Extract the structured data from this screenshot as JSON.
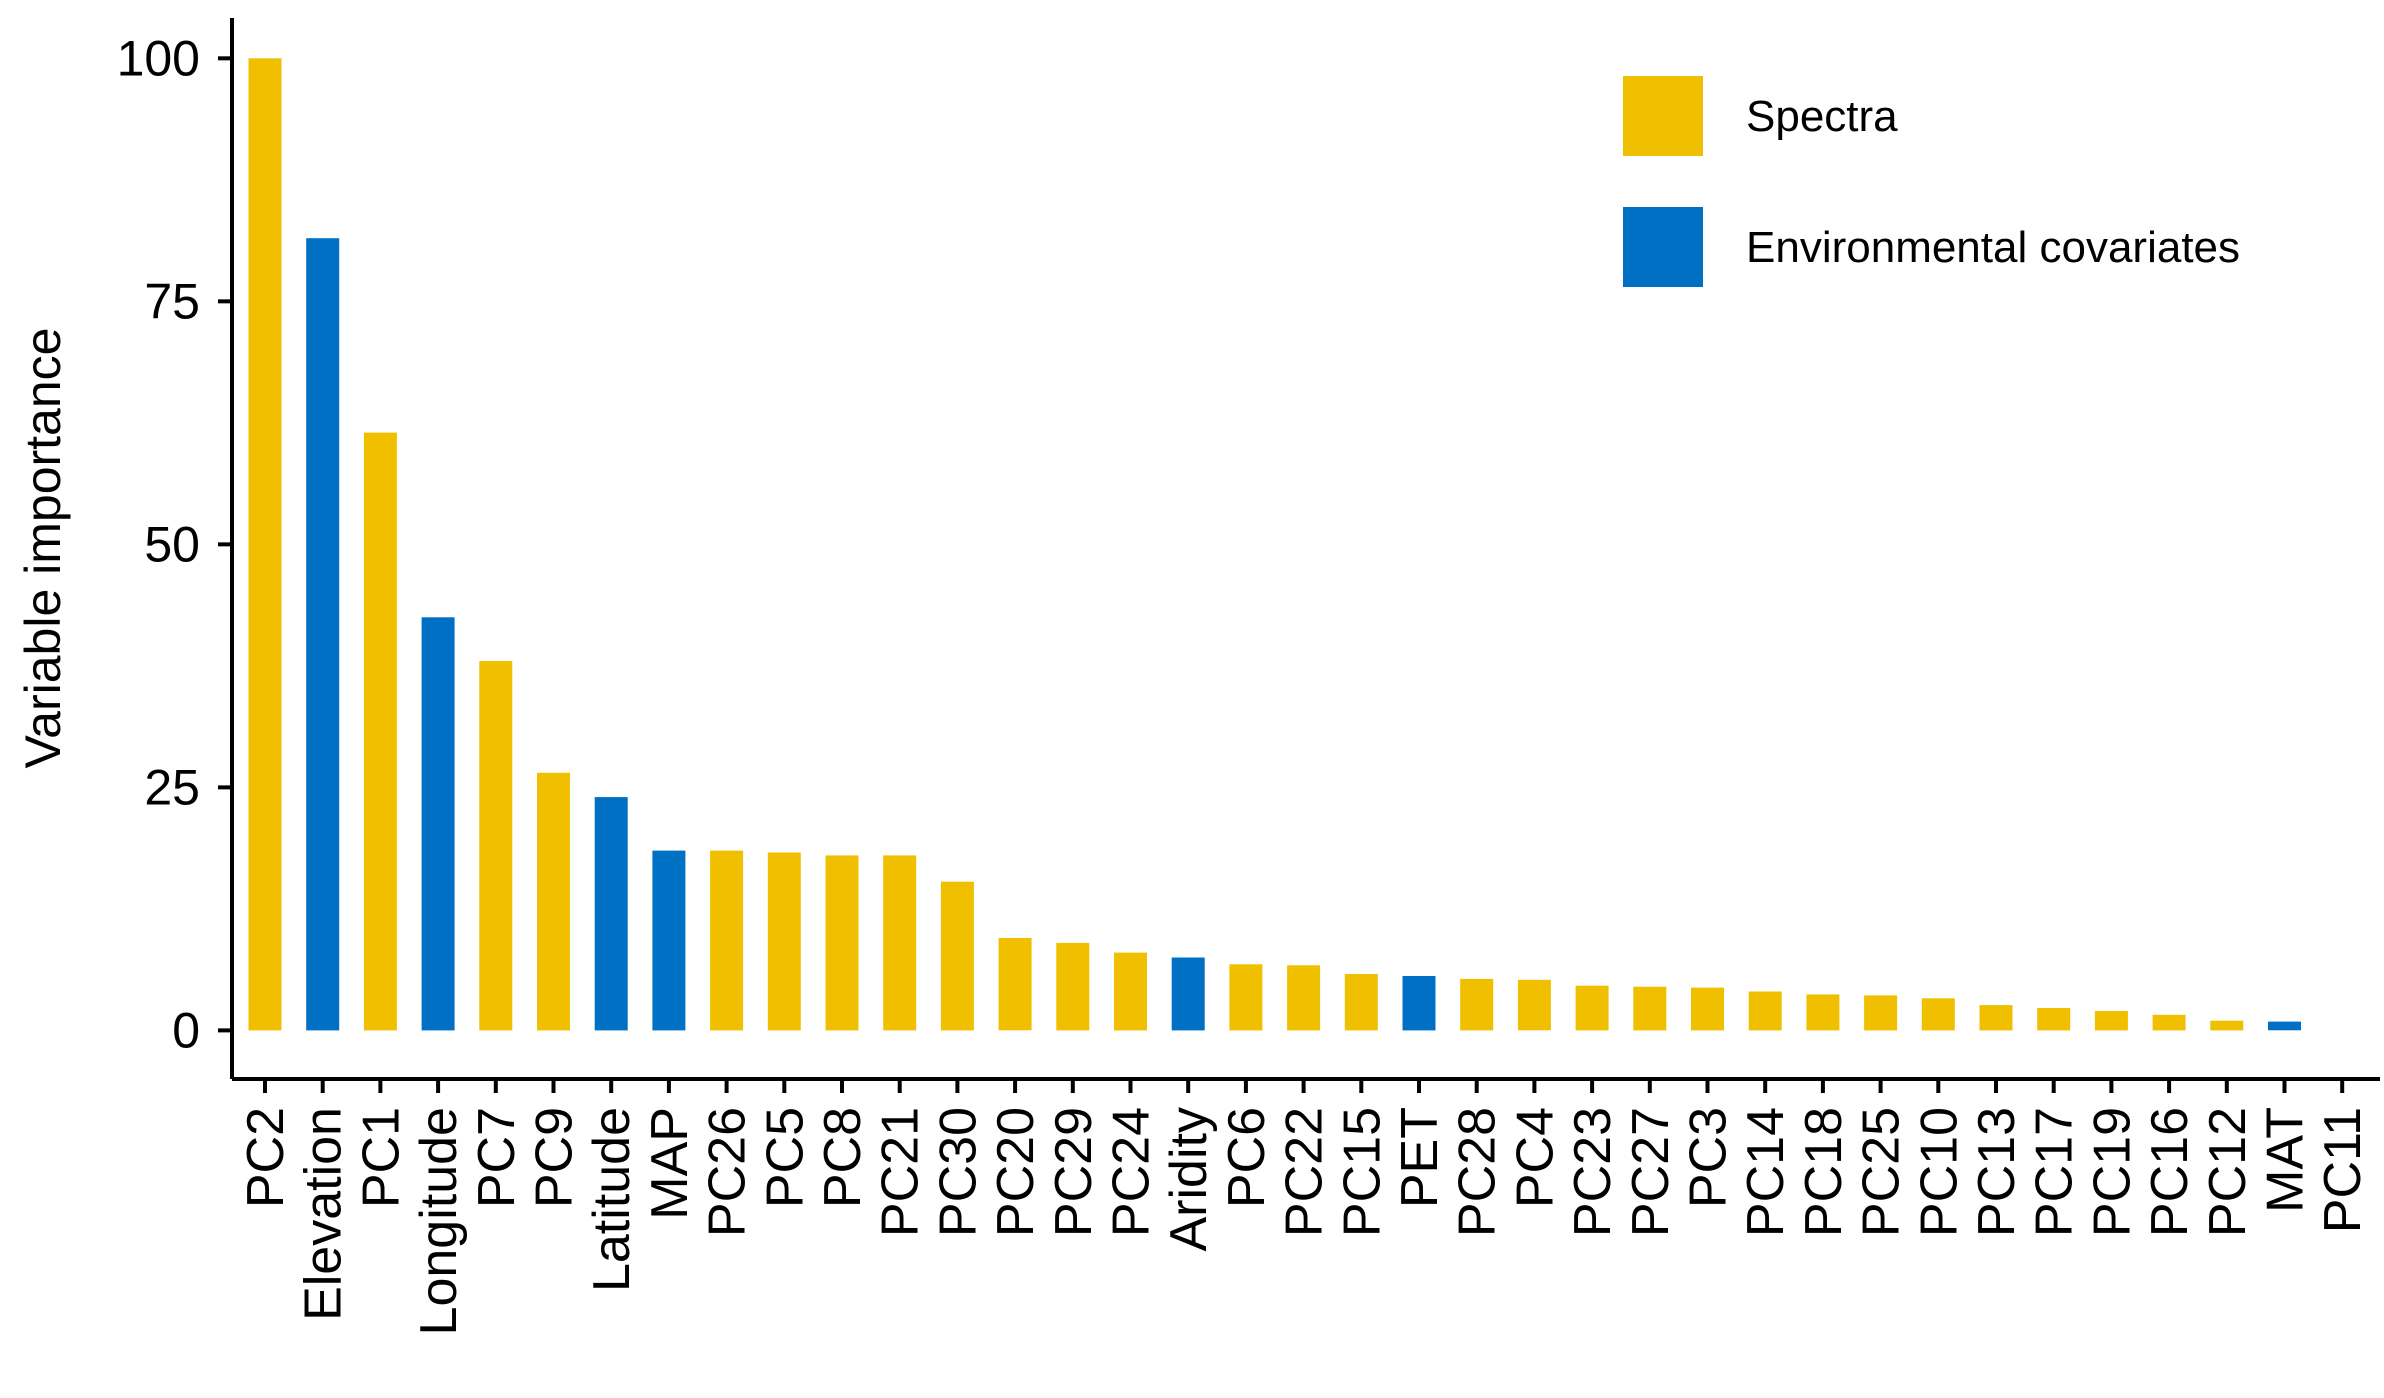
{
  "colors": {
    "spectra": "#f0c000",
    "environmental": "#0070c4",
    "axis": "#000000"
  },
  "legend": {
    "items": [
      {
        "label": "Spectra",
        "color_key": "spectra"
      },
      {
        "label": "Environmental covariates",
        "color_key": "environmental"
      }
    ],
    "placement": "top-right"
  },
  "chart_data": {
    "type": "bar",
    "title": "",
    "xlabel": "",
    "ylabel": "Variable importance",
    "ylim": [
      -5,
      106
    ],
    "yticks": [
      0,
      25,
      50,
      75,
      100
    ],
    "grid": false,
    "categories": [
      "PC2",
      "Elevation",
      "PC1",
      "Longitude",
      "PC7",
      "PC9",
      "Latitude",
      "MAP",
      "PC26",
      "PC5",
      "PC8",
      "PC21",
      "PC30",
      "PC20",
      "PC29",
      "PC24",
      "Aridity",
      "PC6",
      "PC22",
      "PC15",
      "PET",
      "PC28",
      "PC4",
      "PC23",
      "PC27",
      "PC3",
      "PC14",
      "PC18",
      "PC25",
      "PC10",
      "PC13",
      "PC17",
      "PC19",
      "PC16",
      "PC12",
      "MAT",
      "PC11"
    ],
    "values": [
      100,
      81.5,
      61.5,
      42.5,
      38,
      26.5,
      24,
      18.5,
      18.5,
      18.3,
      18,
      18,
      15.3,
      9.5,
      9,
      8,
      7.5,
      6.8,
      6.7,
      5.8,
      5.6,
      5.3,
      5.2,
      4.6,
      4.5,
      4.4,
      4,
      3.7,
      3.6,
      3.3,
      2.6,
      2.3,
      2,
      1.6,
      1,
      0.9,
      0
    ],
    "groups": [
      "Spectra",
      "Environmental covariates",
      "Spectra",
      "Environmental covariates",
      "Spectra",
      "Spectra",
      "Environmental covariates",
      "Environmental covariates",
      "Spectra",
      "Spectra",
      "Spectra",
      "Spectra",
      "Spectra",
      "Spectra",
      "Spectra",
      "Spectra",
      "Environmental covariates",
      "Spectra",
      "Spectra",
      "Spectra",
      "Environmental covariates",
      "Spectra",
      "Spectra",
      "Spectra",
      "Spectra",
      "Spectra",
      "Spectra",
      "Spectra",
      "Spectra",
      "Spectra",
      "Spectra",
      "Spectra",
      "Spectra",
      "Spectra",
      "Spectra",
      "Environmental covariates",
      "Spectra"
    ]
  }
}
